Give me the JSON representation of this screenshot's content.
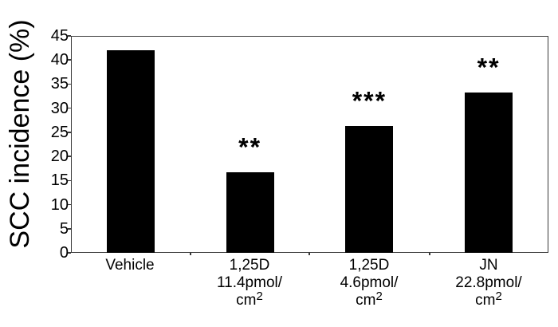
{
  "chart_data": {
    "type": "bar",
    "title": "",
    "xlabel": "",
    "ylabel": "SCC incidence (%)",
    "ylim": [
      0,
      45
    ],
    "yticks": [
      0,
      5,
      10,
      15,
      20,
      25,
      30,
      35,
      40,
      45
    ],
    "grid": false,
    "legend": null,
    "categories": [
      "Vehicle",
      "1,25D 11.4pmol/cm2",
      "1,25D 4.6pmol/cm2",
      "JN 22.8pmol/cm2"
    ],
    "category_lines": [
      [
        "Vehicle"
      ],
      [
        "1,25D",
        "11.4pmol/",
        "cm",
        "2"
      ],
      [
        "1,25D",
        "4.6pmol/",
        "cm",
        "2"
      ],
      [
        "JN",
        "22.8pmol/",
        "cm",
        "2"
      ]
    ],
    "values": [
      42.0,
      16.7,
      26.3,
      33.3
    ],
    "annotations": [
      "",
      "**",
      "***",
      "**"
    ],
    "bar_color": "#000000"
  },
  "labels": {
    "ylabel": "SCC incidence (%)",
    "yticks": [
      "0",
      "5",
      "10",
      "15",
      "20",
      "25",
      "30",
      "35",
      "40",
      "45"
    ],
    "cat0": {
      "l1": "Vehicle"
    },
    "cat1": {
      "l1": "1,25D",
      "l2": "11.4pmol/",
      "l3": "cm",
      "sup": "2"
    },
    "cat2": {
      "l1": "1,25D",
      "l2": "4.6pmol/",
      "l3": "cm",
      "sup": "2"
    },
    "cat3": {
      "l1": "JN",
      "l2": "22.8pmol/",
      "l3": "cm",
      "sup": "2"
    },
    "sig": [
      "",
      "**",
      "***",
      "**"
    ]
  }
}
